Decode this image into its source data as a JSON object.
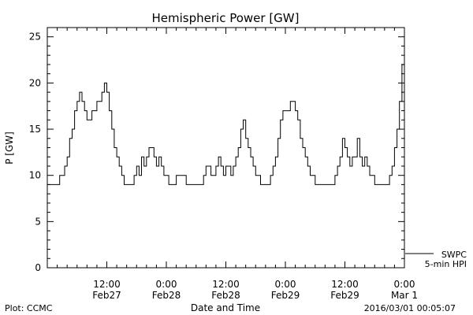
{
  "chart_data": {
    "type": "line",
    "title": "Hemispheric Power [GW]",
    "xlabel": "Date and Time",
    "ylabel": "P [GW]",
    "ylim": [
      0,
      26
    ],
    "yticks": [
      0,
      5,
      10,
      15,
      20,
      25
    ],
    "xlim": [
      0,
      72
    ],
    "xticks": [
      {
        "x": 12,
        "line1": "12:00",
        "line2": "Feb27"
      },
      {
        "x": 24,
        "line1": "0:00",
        "line2": "Feb28"
      },
      {
        "x": 36,
        "line1": "12:00",
        "line2": "Feb28"
      },
      {
        "x": 48,
        "line1": "0:00",
        "line2": "Feb29"
      },
      {
        "x": 60,
        "line1": "12:00",
        "line2": "Feb29"
      },
      {
        "x": 72,
        "line1": "0:00",
        "line2": "Mar 1"
      }
    ],
    "legend": {
      "line1": "SWPC",
      "line2": "5-min HPI",
      "placement": "bottom-right"
    },
    "footer_left": "Plot: CCMC",
    "footer_right": "2016/03/01 00:05:07",
    "series": [
      {
        "points": [
          [
            0,
            9
          ],
          [
            1,
            9
          ],
          [
            2,
            9
          ],
          [
            2.5,
            10
          ],
          [
            3,
            10
          ],
          [
            3.5,
            11
          ],
          [
            4,
            12
          ],
          [
            4.5,
            14
          ],
          [
            5,
            15
          ],
          [
            5.5,
            17
          ],
          [
            6,
            18
          ],
          [
            6.5,
            19
          ],
          [
            7,
            18
          ],
          [
            7.5,
            17
          ],
          [
            8,
            16
          ],
          [
            8.5,
            16
          ],
          [
            9,
            17
          ],
          [
            9.5,
            17
          ],
          [
            10,
            18
          ],
          [
            10.5,
            18
          ],
          [
            11,
            19
          ],
          [
            11.5,
            20
          ],
          [
            12,
            19
          ],
          [
            12.5,
            17
          ],
          [
            13,
            15
          ],
          [
            13.5,
            13
          ],
          [
            14,
            12
          ],
          [
            14.5,
            11
          ],
          [
            15,
            10
          ],
          [
            15.5,
            9
          ],
          [
            16,
            9
          ],
          [
            16.5,
            9
          ],
          [
            17,
            9
          ],
          [
            17.5,
            10
          ],
          [
            18,
            11
          ],
          [
            18.5,
            10
          ],
          [
            19,
            12
          ],
          [
            19.5,
            11
          ],
          [
            20,
            12
          ],
          [
            20.5,
            13
          ],
          [
            21,
            13
          ],
          [
            21.5,
            12
          ],
          [
            22,
            11
          ],
          [
            22.5,
            12
          ],
          [
            23,
            11
          ],
          [
            23.5,
            10
          ],
          [
            24,
            10
          ],
          [
            24.5,
            9
          ],
          [
            25,
            9
          ],
          [
            25.5,
            9
          ],
          [
            26,
            10
          ],
          [
            26.5,
            10
          ],
          [
            27,
            10
          ],
          [
            27.5,
            10
          ],
          [
            28,
            9
          ],
          [
            28.5,
            9
          ],
          [
            29,
            9
          ],
          [
            29.5,
            9
          ],
          [
            30,
            9
          ],
          [
            30.5,
            9
          ],
          [
            31,
            9
          ],
          [
            31.5,
            10
          ],
          [
            32,
            11
          ],
          [
            32.5,
            11
          ],
          [
            33,
            10
          ],
          [
            33.5,
            10
          ],
          [
            34,
            11
          ],
          [
            34.5,
            12
          ],
          [
            35,
            11
          ],
          [
            35.5,
            10
          ],
          [
            36,
            11
          ],
          [
            36.5,
            11
          ],
          [
            37,
            10
          ],
          [
            37.5,
            11
          ],
          [
            38,
            12
          ],
          [
            38.5,
            13
          ],
          [
            39,
            15
          ],
          [
            39.5,
            16
          ],
          [
            40,
            14
          ],
          [
            40.5,
            13
          ],
          [
            41,
            12
          ],
          [
            41.5,
            11
          ],
          [
            42,
            10
          ],
          [
            42.5,
            10
          ],
          [
            43,
            9
          ],
          [
            43.5,
            9
          ],
          [
            44,
            9
          ],
          [
            44.5,
            9
          ],
          [
            45,
            10
          ],
          [
            45.5,
            11
          ],
          [
            46,
            12
          ],
          [
            46.5,
            14
          ],
          [
            47,
            16
          ],
          [
            47.5,
            17
          ],
          [
            48,
            17
          ],
          [
            48.5,
            17
          ],
          [
            49,
            18
          ],
          [
            49.5,
            18
          ],
          [
            50,
            17
          ],
          [
            50.5,
            16
          ],
          [
            51,
            14
          ],
          [
            51.5,
            13
          ],
          [
            52,
            12
          ],
          [
            52.5,
            11
          ],
          [
            53,
            10
          ],
          [
            53.5,
            10
          ],
          [
            54,
            9
          ],
          [
            54.5,
            9
          ],
          [
            55,
            9
          ],
          [
            55.5,
            9
          ],
          [
            56,
            9
          ],
          [
            56.5,
            9
          ],
          [
            57,
            9
          ],
          [
            57.5,
            9
          ],
          [
            58,
            10
          ],
          [
            58.5,
            11
          ],
          [
            59,
            12
          ],
          [
            59.5,
            14
          ],
          [
            60,
            13
          ],
          [
            60.5,
            12
          ],
          [
            61,
            11
          ],
          [
            61.5,
            12
          ],
          [
            62,
            12
          ],
          [
            62.5,
            14
          ],
          [
            63,
            12
          ],
          [
            63.5,
            11
          ],
          [
            64,
            12
          ],
          [
            64.5,
            11
          ],
          [
            65,
            10
          ],
          [
            65.5,
            10
          ],
          [
            66,
            9
          ],
          [
            66.5,
            9
          ],
          [
            67,
            9
          ],
          [
            67.5,
            9
          ],
          [
            68,
            9
          ],
          [
            68.5,
            9
          ],
          [
            69,
            10
          ],
          [
            69.5,
            11
          ],
          [
            70,
            13
          ],
          [
            70.5,
            15
          ],
          [
            71,
            18
          ],
          [
            71.5,
            22
          ],
          [
            72,
            24
          ]
        ]
      }
    ]
  }
}
